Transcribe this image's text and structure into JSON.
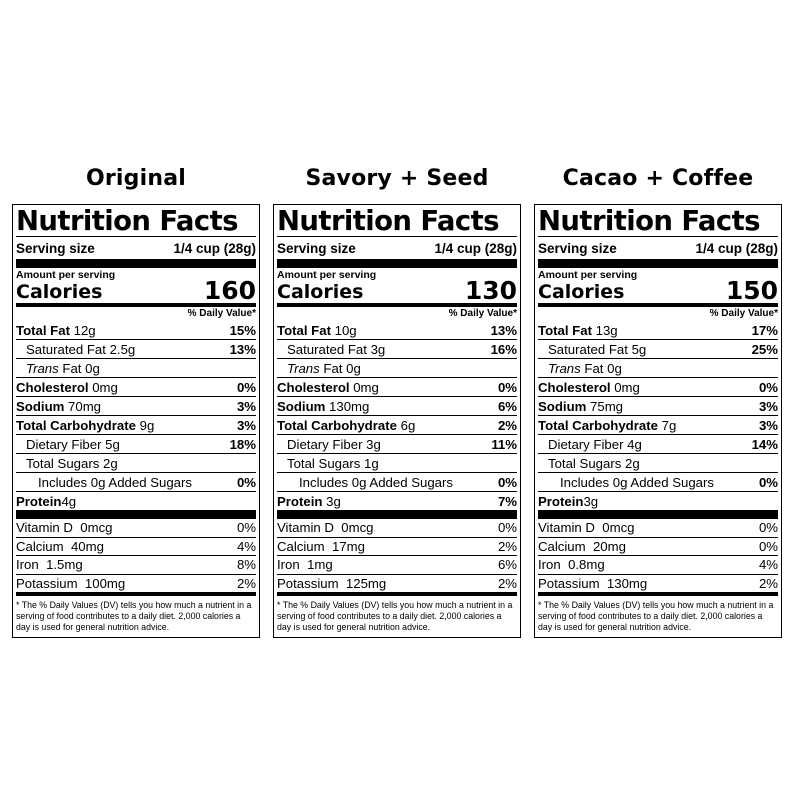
{
  "labels": [
    {
      "product": "Original",
      "title": "Nutrition Facts",
      "serving_label": "Serving size",
      "serving_value": "1/4 cup (28g)",
      "amount_per_serving": "Amount per serving",
      "calories_label": "Calories",
      "calories_value": "160",
      "dv_header": "% Daily Value*",
      "nutrients": [
        {
          "name": "Total Fat",
          "amount": "12g",
          "dv": "15%"
        },
        {
          "name": "Saturated Fat",
          "amount": "2.5g",
          "dv": "13%"
        },
        {
          "name": "Trans",
          "name2": "Fat",
          "amount": "0g",
          "dv": ""
        },
        {
          "name": "Cholesterol",
          "amount": "0mg",
          "dv": "0%"
        },
        {
          "name": "Sodium",
          "amount": "70mg",
          "dv": "3%"
        },
        {
          "name": "Total Carbohydrate",
          "amount": "9g",
          "dv": "3%"
        },
        {
          "name": "Dietary Fiber",
          "amount": "5g",
          "dv": "18%"
        },
        {
          "name": "Total Sugars",
          "amount": "2g",
          "dv": ""
        },
        {
          "name": "Includes",
          "amount": "0g Added Sugars",
          "dv": "0%"
        },
        {
          "name": "Protein",
          "amount": "4g",
          "dv": ""
        }
      ],
      "vitamins": [
        {
          "name": "Vitamin D",
          "amount": "0mcg",
          "dv": "0%"
        },
        {
          "name": "Calcium",
          "amount": "40mg",
          "dv": "4%"
        },
        {
          "name": "Iron",
          "amount": "1.5mg",
          "dv": "8%"
        },
        {
          "name": "Potassium",
          "amount": "100mg",
          "dv": "2%"
        }
      ],
      "footnote": "* The % Daily Values (DV) tells you how much a nutrient in a serving of food contributes to a daily diet. 2,000 calories a day is used for general nutrition advice."
    },
    {
      "product": "Savory + Seed",
      "title": "Nutrition Facts",
      "serving_label": "Serving size",
      "serving_value": "1/4 cup (28g)",
      "amount_per_serving": "Amount per serving",
      "calories_label": "Calories",
      "calories_value": "130",
      "dv_header": "% Daily Value*",
      "nutrients": [
        {
          "name": "Total Fat",
          "amount": "10g",
          "dv": "13%"
        },
        {
          "name": "Saturated Fat",
          "amount": "3g",
          "dv": "16%"
        },
        {
          "name": "Trans",
          "name2": "Fat",
          "amount": "0g",
          "dv": ""
        },
        {
          "name": "Cholesterol",
          "amount": "0mg",
          "dv": "0%"
        },
        {
          "name": "Sodium",
          "amount": "130mg",
          "dv": "6%"
        },
        {
          "name": "Total Carbohydrate",
          "amount": "6g",
          "dv": "2%"
        },
        {
          "name": "Dietary Fiber",
          "amount": "3g",
          "dv": "11%"
        },
        {
          "name": "Total Sugars",
          "amount": "1g",
          "dv": ""
        },
        {
          "name": "Includes",
          "amount": "0g Added Sugars",
          "dv": "0%"
        },
        {
          "name": "Protein",
          "amount": "3g",
          "dv": "7%"
        }
      ],
      "vitamins": [
        {
          "name": "Vitamin D",
          "amount": "0mcg",
          "dv": "0%"
        },
        {
          "name": "Calcium",
          "amount": "17mg",
          "dv": "2%"
        },
        {
          "name": "Iron",
          "amount": "1mg",
          "dv": "6%"
        },
        {
          "name": "Potassium",
          "amount": "125mg",
          "dv": "2%"
        }
      ],
      "footnote": "* The % Daily Values (DV) tells you how much a nutrient in a serving of food contributes to a daily diet. 2,000 calories a day is used for general nutrition advice."
    },
    {
      "product": "Cacao + Coffee",
      "title": "Nutrition Facts",
      "serving_label": "Serving size",
      "serving_value": "1/4 cup (28g)",
      "amount_per_serving": "Amount per serving",
      "calories_label": "Calories",
      "calories_value": "150",
      "dv_header": "% Daily Value*",
      "nutrients": [
        {
          "name": "Total Fat",
          "amount": "13g",
          "dv": "17%"
        },
        {
          "name": "Saturated Fat",
          "amount": "5g",
          "dv": "25%"
        },
        {
          "name": "Trans",
          "name2": "Fat",
          "amount": "0g",
          "dv": ""
        },
        {
          "name": "Cholesterol",
          "amount": "0mg",
          "dv": "0%"
        },
        {
          "name": "Sodium",
          "amount": "75mg",
          "dv": "3%"
        },
        {
          "name": "Total Carbohydrate",
          "amount": "7g",
          "dv": "3%"
        },
        {
          "name": "Dietary Fiber",
          "amount": "4g",
          "dv": "14%"
        },
        {
          "name": "Total Sugars",
          "amount": "2g",
          "dv": ""
        },
        {
          "name": "Includes",
          "amount": "0g Added Sugars",
          "dv": "0%"
        },
        {
          "name": "Protein",
          "amount": "3g",
          "dv": ""
        }
      ],
      "vitamins": [
        {
          "name": "Vitamin D",
          "amount": "0mcg",
          "dv": "0%"
        },
        {
          "name": "Calcium",
          "amount": "20mg",
          "dv": "0%"
        },
        {
          "name": "Iron",
          "amount": "0.8mg",
          "dv": "4%"
        },
        {
          "name": "Potassium",
          "amount": "130mg",
          "dv": "2%"
        }
      ],
      "footnote": "* The % Daily Values (DV) tells you how much a nutrient in a serving of food contributes to a daily diet. 2,000 calories a day is used for general nutrition advice."
    }
  ]
}
